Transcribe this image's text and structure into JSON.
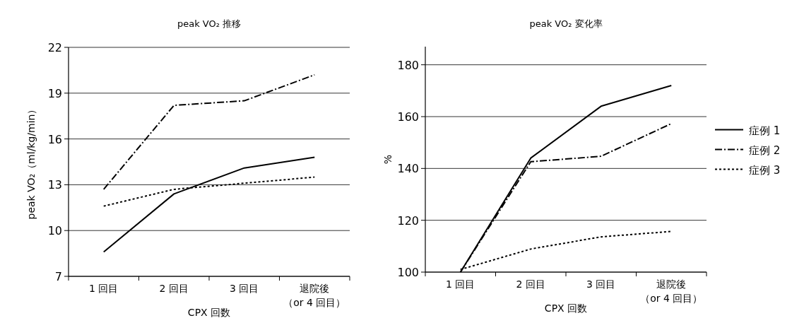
{
  "chart_data": [
    {
      "type": "line",
      "title": "peak VO₂ 推移",
      "xlabel": "CPX 回数",
      "ylabel": "peak VO₂（ml/kg/min）",
      "categories": [
        "1 回目",
        "2 回目",
        "3 回目",
        "退院後（or 4 回目）"
      ],
      "ylim": [
        7,
        22
      ],
      "yticks": [
        7,
        10,
        13,
        16,
        19,
        22
      ],
      "grid": "y",
      "legend": false,
      "marker": "none",
      "series": [
        {
          "color": "#000000",
          "line_style": "solid",
          "values": [
            8.6,
            12.4,
            14.1,
            14.8
          ]
        },
        {
          "color": "#000000",
          "line_style": "dashdot",
          "values": [
            12.7,
            18.2,
            18.5,
            20.2
          ]
        },
        {
          "color": "#000000",
          "line_style": "dotted",
          "values": [
            11.6,
            12.7,
            13.1,
            13.5
          ]
        }
      ]
    },
    {
      "type": "line",
      "title": "peak VO₂ 変化率",
      "xlabel": "CPX 回数",
      "ylabel": "%",
      "categories": [
        "1 回目",
        "2 回目",
        "3 回目",
        "退院後（or 4 回目）"
      ],
      "ylim": [
        100,
        187
      ],
      "yticks": [
        100,
        120,
        140,
        160,
        180
      ],
      "grid": "y",
      "legend": "right",
      "marker": "none",
      "series": [
        {
          "name": "症例 1",
          "color": "#000000",
          "line_style": "solid",
          "values": [
            100,
            144,
            164,
            172
          ]
        },
        {
          "name": "症例 2",
          "color": "#000000",
          "line_style": "dashdot",
          "values": [
            100,
            142.6,
            144.7,
            157.3
          ]
        },
        {
          "name": "症例 3",
          "color": "#000000",
          "line_style": "dotted",
          "values": [
            101,
            108.9,
            113.6,
            115.7
          ]
        }
      ]
    }
  ]
}
